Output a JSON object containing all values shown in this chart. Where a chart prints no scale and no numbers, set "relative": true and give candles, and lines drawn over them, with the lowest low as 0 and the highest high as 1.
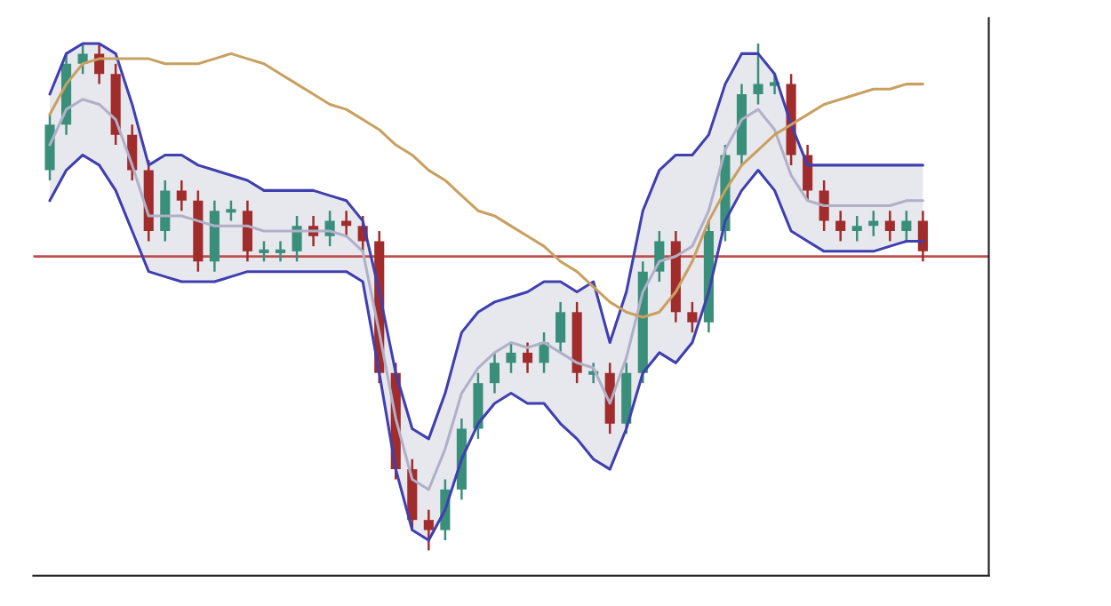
{
  "chart_data": {
    "type": "candlestick",
    "relative": true,
    "categories": [
      null,
      null,
      null,
      null,
      null,
      null,
      null,
      null,
      null,
      null,
      null,
      null,
      null,
      null,
      null,
      null,
      null,
      null,
      null,
      null,
      null,
      null,
      null,
      null,
      null,
      null,
      null,
      null,
      null,
      null,
      null,
      null,
      null,
      null,
      null,
      null,
      null,
      null,
      null,
      null,
      null,
      null,
      null,
      null,
      null,
      null,
      null,
      null,
      null,
      null,
      null,
      null,
      null,
      null
    ],
    "ohlc": [
      [
        0.75,
        0.86,
        0.73,
        0.84
      ],
      [
        0.84,
        0.98,
        0.82,
        0.96
      ],
      [
        0.96,
        1.0,
        0.94,
        0.98
      ],
      [
        0.98,
        1.0,
        0.92,
        0.94
      ],
      [
        0.94,
        0.96,
        0.8,
        0.82
      ],
      [
        0.82,
        0.84,
        0.73,
        0.75
      ],
      [
        0.75,
        0.77,
        0.61,
        0.63
      ],
      [
        0.63,
        0.73,
        0.61,
        0.71
      ],
      [
        0.71,
        0.73,
        0.67,
        0.69
      ],
      [
        0.69,
        0.71,
        0.55,
        0.57
      ],
      [
        0.57,
        0.69,
        0.55,
        0.67
      ],
      [
        0.67,
        0.69,
        0.65,
        0.67
      ],
      [
        0.67,
        0.69,
        0.57,
        0.59
      ],
      [
        0.59,
        0.61,
        0.57,
        0.59
      ],
      [
        0.59,
        0.61,
        0.57,
        0.59
      ],
      [
        0.59,
        0.66,
        0.57,
        0.64
      ],
      [
        0.64,
        0.66,
        0.6,
        0.62
      ],
      [
        0.62,
        0.67,
        0.6,
        0.65
      ],
      [
        0.65,
        0.67,
        0.62,
        0.64
      ],
      [
        0.64,
        0.66,
        0.59,
        0.61
      ],
      [
        0.61,
        0.63,
        0.33,
        0.35
      ],
      [
        0.35,
        0.37,
        0.14,
        0.16
      ],
      [
        0.16,
        0.18,
        0.04,
        0.06
      ],
      [
        0.06,
        0.08,
        0.0,
        0.04
      ],
      [
        0.04,
        0.14,
        0.02,
        0.12
      ],
      [
        0.12,
        0.26,
        0.1,
        0.24
      ],
      [
        0.24,
        0.35,
        0.22,
        0.33
      ],
      [
        0.33,
        0.39,
        0.31,
        0.37
      ],
      [
        0.37,
        0.41,
        0.35,
        0.39
      ],
      [
        0.39,
        0.41,
        0.35,
        0.37
      ],
      [
        0.37,
        0.43,
        0.35,
        0.41
      ],
      [
        0.41,
        0.49,
        0.39,
        0.47
      ],
      [
        0.47,
        0.49,
        0.33,
        0.35
      ],
      [
        0.35,
        0.37,
        0.33,
        0.35
      ],
      [
        0.35,
        0.37,
        0.23,
        0.25
      ],
      [
        0.25,
        0.37,
        0.23,
        0.35
      ],
      [
        0.35,
        0.57,
        0.33,
        0.55
      ],
      [
        0.55,
        0.63,
        0.53,
        0.61
      ],
      [
        0.61,
        0.63,
        0.45,
        0.47
      ],
      [
        0.47,
        0.49,
        0.43,
        0.45
      ],
      [
        0.45,
        0.65,
        0.43,
        0.63
      ],
      [
        0.63,
        0.8,
        0.61,
        0.78
      ],
      [
        0.78,
        0.92,
        0.76,
        0.9
      ],
      [
        0.9,
        1.0,
        0.88,
        0.92
      ],
      [
        0.92,
        0.94,
        0.9,
        0.92
      ],
      [
        0.92,
        0.94,
        0.76,
        0.78
      ],
      [
        0.78,
        0.8,
        0.69,
        0.71
      ],
      [
        0.71,
        0.73,
        0.63,
        0.65
      ],
      [
        0.65,
        0.67,
        0.61,
        0.63
      ],
      [
        0.63,
        0.66,
        0.61,
        0.64
      ],
      [
        0.64,
        0.67,
        0.62,
        0.65
      ],
      [
        0.65,
        0.67,
        0.61,
        0.63
      ],
      [
        0.63,
        0.67,
        0.61,
        0.65
      ],
      [
        0.65,
        0.67,
        0.57,
        0.59
      ]
    ],
    "colors": [
      "#3a8f7a",
      "#3a8f7a",
      "#3a8f7a",
      "#a02c2c",
      "#a02c2c",
      "#a02c2c",
      "#a02c2c",
      "#3a8f7a",
      "#a02c2c",
      "#a02c2c",
      "#3a8f7a",
      "#3a8f7a",
      "#a02c2c",
      "#3a8f7a",
      "#3a8f7a",
      "#3a8f7a",
      "#a02c2c",
      "#3a8f7a",
      "#a02c2c",
      "#a02c2c",
      "#a02c2c",
      "#a02c2c",
      "#a02c2c",
      "#a02c2c",
      "#3a8f7a",
      "#3a8f7a",
      "#3a8f7a",
      "#3a8f7a",
      "#3a8f7a",
      "#a02c2c",
      "#3a8f7a",
      "#3a8f7a",
      "#a02c2c",
      "#3a8f7a",
      "#a02c2c",
      "#3a8f7a",
      "#3a8f7a",
      "#3a8f7a",
      "#a02c2c",
      "#a02c2c",
      "#3a8f7a",
      "#3a8f7a",
      "#3a8f7a",
      "#3a8f7a",
      "#3a8f7a",
      "#a02c2c",
      "#a02c2c",
      "#a02c2c",
      "#a02c2c",
      "#3a8f7a",
      "#3a8f7a",
      "#a02c2c",
      "#3a8f7a",
      "#a02c2c"
    ],
    "series": [
      {
        "type": "line",
        "color": "#b0b0c8",
        "values": [
          0.8,
          0.87,
          0.89,
          0.88,
          0.85,
          0.76,
          0.66,
          0.66,
          0.66,
          0.65,
          0.64,
          0.64,
          0.64,
          0.63,
          0.63,
          0.63,
          0.63,
          0.63,
          0.62,
          0.59,
          0.43,
          0.26,
          0.14,
          0.12,
          0.2,
          0.31,
          0.36,
          0.39,
          0.41,
          0.4,
          0.41,
          0.39,
          0.37,
          0.36,
          0.29,
          0.38,
          0.51,
          0.57,
          0.58,
          0.6,
          0.67,
          0.79,
          0.85,
          0.87,
          0.83,
          0.74,
          0.69,
          0.68,
          0.68,
          0.68,
          0.68,
          0.68,
          0.69,
          0.69
        ],
        "upper": [
          0.9,
          0.98,
          1.0,
          1.0,
          0.98,
          0.88,
          0.76,
          0.78,
          0.78,
          0.76,
          0.75,
          0.74,
          0.73,
          0.71,
          0.71,
          0.71,
          0.71,
          0.7,
          0.69,
          0.65,
          0.51,
          0.35,
          0.24,
          0.22,
          0.31,
          0.43,
          0.47,
          0.49,
          0.5,
          0.51,
          0.53,
          0.53,
          0.51,
          0.53,
          0.41,
          0.51,
          0.67,
          0.75,
          0.78,
          0.78,
          0.82,
          0.92,
          0.98,
          0.98,
          0.94,
          0.84,
          0.76,
          0.76,
          0.76,
          0.76,
          0.76,
          0.76,
          0.76,
          0.76
        ],
        "lower": [
          0.69,
          0.75,
          0.78,
          0.76,
          0.71,
          0.63,
          0.55,
          0.54,
          0.53,
          0.53,
          0.53,
          0.54,
          0.55,
          0.55,
          0.55,
          0.55,
          0.55,
          0.55,
          0.55,
          0.53,
          0.35,
          0.16,
          0.04,
          0.02,
          0.08,
          0.18,
          0.25,
          0.29,
          0.31,
          0.29,
          0.29,
          0.25,
          0.22,
          0.18,
          0.16,
          0.24,
          0.35,
          0.39,
          0.37,
          0.41,
          0.51,
          0.65,
          0.71,
          0.75,
          0.71,
          0.63,
          0.61,
          0.59,
          0.59,
          0.59,
          0.59,
          0.6,
          0.61,
          0.61
        ]
      },
      {
        "type": "line",
        "color": "#3f3fb0",
        "values": [
          0.9,
          0.98,
          1.0,
          1.0,
          0.98,
          0.88,
          0.76,
          0.78,
          0.78,
          0.76,
          0.75,
          0.74,
          0.73,
          0.71,
          0.71,
          0.71,
          0.71,
          0.7,
          0.69,
          0.65,
          0.51,
          0.35,
          0.24,
          0.22,
          0.31,
          0.43,
          0.47,
          0.49,
          0.5,
          0.51,
          0.53,
          0.53,
          0.51,
          0.53,
          0.41,
          0.51,
          0.67,
          0.75,
          0.78,
          0.78,
          0.82,
          0.92,
          0.98,
          0.98,
          0.94,
          0.84,
          0.76,
          0.76,
          0.76,
          0.76,
          0.76,
          0.76,
          0.76,
          0.76
        ]
      },
      {
        "type": "line",
        "color": "#3f3fb0",
        "values": [
          0.69,
          0.75,
          0.78,
          0.76,
          0.71,
          0.63,
          0.55,
          0.54,
          0.53,
          0.53,
          0.53,
          0.54,
          0.55,
          0.55,
          0.55,
          0.55,
          0.55,
          0.55,
          0.55,
          0.53,
          0.35,
          0.16,
          0.04,
          0.02,
          0.08,
          0.18,
          0.25,
          0.29,
          0.31,
          0.29,
          0.29,
          0.25,
          0.22,
          0.18,
          0.16,
          0.24,
          0.35,
          0.39,
          0.37,
          0.41,
          0.51,
          0.65,
          0.71,
          0.75,
          0.71,
          0.63,
          0.61,
          0.59,
          0.59,
          0.59,
          0.59,
          0.6,
          0.61,
          0.61
        ]
      },
      {
        "type": "line",
        "color": "#c8a060",
        "values": [
          0.86,
          0.92,
          0.96,
          0.97,
          0.97,
          0.97,
          0.97,
          0.96,
          0.96,
          0.96,
          0.97,
          0.98,
          0.97,
          0.96,
          0.94,
          0.92,
          0.9,
          0.88,
          0.87,
          0.85,
          0.83,
          0.8,
          0.78,
          0.75,
          0.73,
          0.7,
          0.67,
          0.66,
          0.64,
          0.62,
          0.6,
          0.57,
          0.55,
          0.52,
          0.49,
          0.47,
          0.46,
          0.47,
          0.51,
          0.57,
          0.65,
          0.71,
          0.76,
          0.79,
          0.82,
          0.84,
          0.86,
          0.88,
          0.89,
          0.9,
          0.91,
          0.91,
          0.92,
          0.92
        ]
      }
    ],
    "ref_lines": [
      {
        "axis": "y",
        "value": 0.58,
        "color": "#c0504d"
      }
    ]
  }
}
